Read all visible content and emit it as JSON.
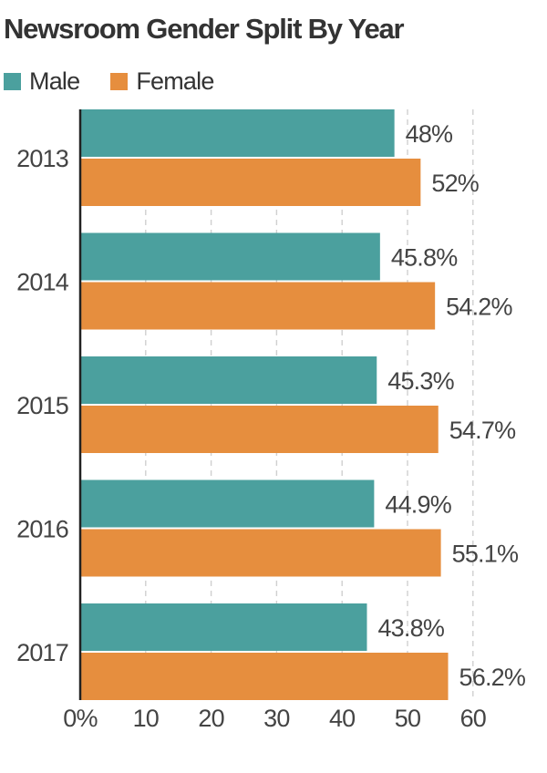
{
  "chart_data": {
    "type": "bar",
    "orientation": "horizontal",
    "title": "Newsroom Gender Split By Year",
    "categories": [
      "2013",
      "2014",
      "2015",
      "2016",
      "2017"
    ],
    "series": [
      {
        "name": "Male",
        "color": "#4ba09e",
        "values": [
          48,
          45.8,
          45.3,
          44.9,
          43.8
        ],
        "labels": [
          "48%",
          "45.8%",
          "45.3%",
          "44.9%",
          "43.8%"
        ]
      },
      {
        "name": "Female",
        "color": "#e68e3e",
        "values": [
          52,
          54.2,
          54.7,
          55.1,
          56.2
        ],
        "labels": [
          "52%",
          "54.2%",
          "54.7%",
          "55.1%",
          "56.2%"
        ]
      }
    ],
    "xticks": [
      0,
      10,
      20,
      30,
      40,
      50,
      60
    ],
    "xtick_labels": [
      "0%",
      "10",
      "20",
      "30",
      "40",
      "50",
      "60"
    ],
    "xlim": [
      0,
      60
    ],
    "grid": true,
    "legend": "top-left"
  }
}
